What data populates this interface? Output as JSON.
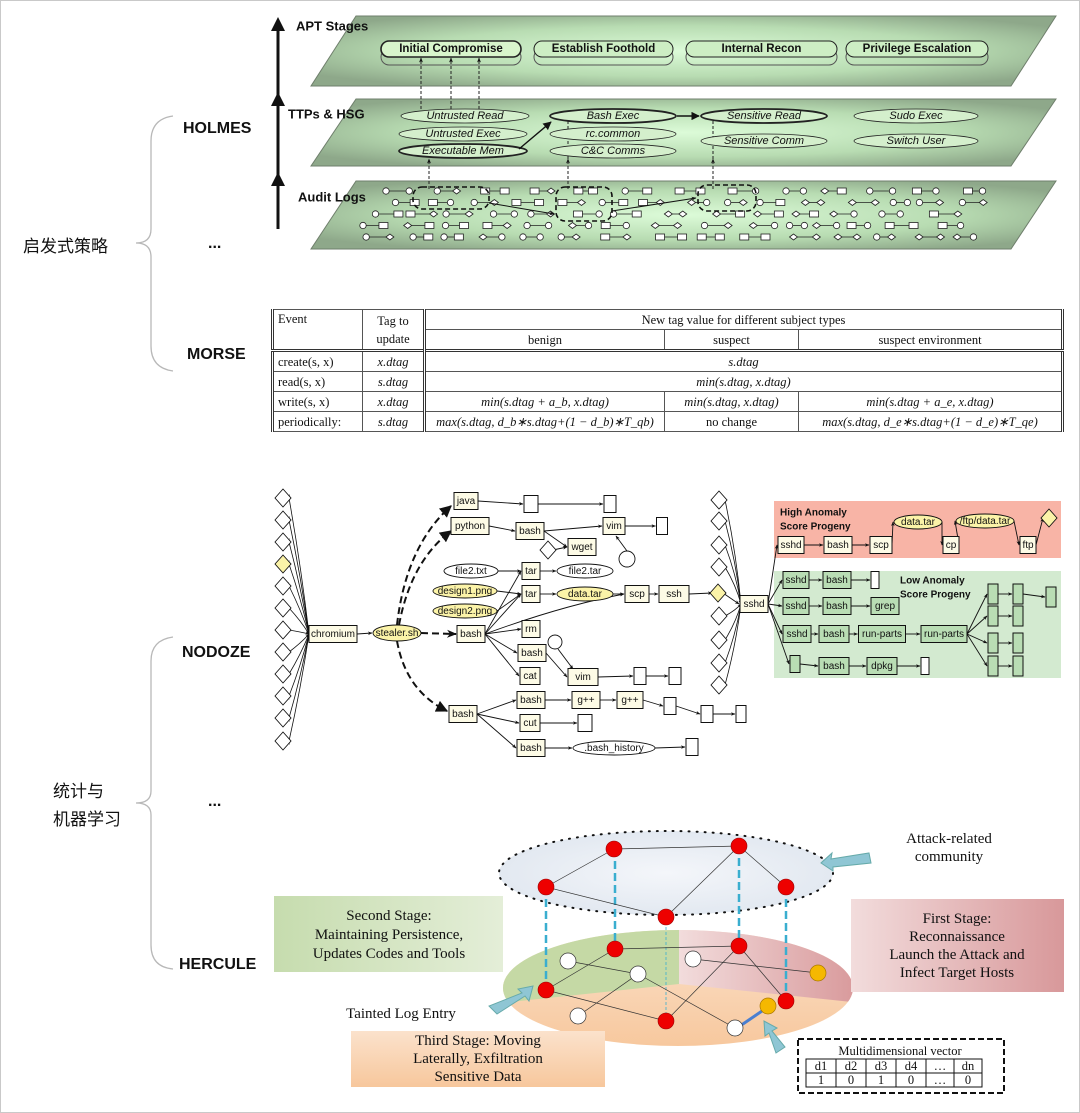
{
  "left": {
    "heuristic": "启发式策略",
    "ml_line1": "统计与",
    "ml_line2": "机器学习",
    "methods": [
      "HOLMES",
      "...",
      "MORSE",
      "NODOZE",
      "...",
      "HERCULE"
    ]
  },
  "holmes": {
    "layers": [
      "APT Stages",
      "TTPs & HSG",
      "Audit Logs"
    ],
    "stages": [
      "Initial Compromise",
      "Establish Foothold",
      "Internal Recon",
      "Privilege Escalation"
    ],
    "ttps": [
      "Untrusted Read",
      "Untrusted Exec",
      "Executable Mem",
      "Bash Exec",
      "rc.common",
      "C&C Comms",
      "Sensitive Read",
      "Sensitive Comm",
      "Sudo Exec",
      "Switch User"
    ],
    "colors": {
      "plane": "#a8c8a0",
      "plane_glow": "#d8f8d0"
    }
  },
  "morse": {
    "headers": {
      "event": "Event",
      "tag_line1": "Tag to",
      "tag_line2": "update",
      "group": "New tag value for different subject types",
      "benign": "benign",
      "suspect": "suspect",
      "env": "suspect environment"
    },
    "rows": [
      {
        "event": "create(s, x)",
        "tag": "x.dtag",
        "all": "s.dtag"
      },
      {
        "event": "read(s, x)",
        "tag": "s.dtag",
        "all": "min(s.dtag, x.dtag)"
      },
      {
        "event": "write(s, x)",
        "tag": "x.dtag",
        "benign": "min(s.dtag + a_b, x.dtag)",
        "suspect": "min(s.dtag, x.dtag)",
        "env": "min(s.dtag + a_e, x.dtag)"
      },
      {
        "event": "periodically:",
        "tag": "s.dtag",
        "benign": "max(s.dtag,  d_b∗s.dtag+(1 − d_b)∗T_qb)",
        "suspect": "no change",
        "env": "max(s.dtag,  d_e∗s.dtag+(1 − d_e)∗T_qe)"
      }
    ]
  },
  "nodoze": {
    "labels": {
      "chromium": "chromium",
      "stealer": "stealer.sh",
      "bash1": "bash",
      "java": "java",
      "python": "python",
      "bash2": "bash",
      "vim1": "vim",
      "wget": "wget",
      "file2txt": "file2.txt",
      "tar1": "tar",
      "file2tar": "file2.tar",
      "design1": "design1.png",
      "tar2": "tar",
      "datatar": "data.tar",
      "design2": "design2.png",
      "scp": "scp",
      "ssh": "ssh",
      "sshd": "sshd",
      "rm": "rm",
      "bash3": "bash",
      "cat": "cat",
      "vim2": "vim",
      "bash4": "bash",
      "bash5": "bash",
      "gpp1": "g++",
      "gpp2": "g++",
      "cut": "cut",
      "bash6": "bash",
      "bh": ".bash_history"
    },
    "high": {
      "title1": "High Anomaly",
      "title2": "Score Progeny",
      "labels": {
        "hsshd": "sshd",
        "hbash": "bash",
        "hscp": "scp",
        "hdata": "data.tar",
        "hcp": "cp",
        "hftpfile": "/ftp/data.tar",
        "hftp": "ftp"
      }
    },
    "low": {
      "title1": "Low  Anomaly",
      "title2": "Score Progeny",
      "labels": {
        "l1s": "sshd",
        "l1b": "bash",
        "l2s": "sshd",
        "l2b": "bash",
        "grep": "grep",
        "l3s": "sshd",
        "l3b": "bash",
        "rp1": "run-parts",
        "rp2": "run-parts",
        "l4b": "bash",
        "dpkg": "dpkg"
      }
    },
    "colors": {
      "high_bg": "#f8b4a6",
      "low_bg": "#d3ead0",
      "highlight": "#fbf3a8",
      "node": "#fdfbe6"
    }
  },
  "hercule": {
    "community_line1": "Attack-related",
    "community_line2": "community",
    "second_stage": [
      "Second Stage:",
      "Maintaining Persistence,",
      "Updates Codes and Tools"
    ],
    "first_stage": [
      "First Stage:",
      "Reconnaissance",
      "Launch the Attack and",
      "Infect Target Hosts"
    ],
    "third_stage": [
      "Third Stage: Moving",
      "Laterally, Exfiltration",
      "Sensitive Data"
    ],
    "tainted": "Tainted Log Entry",
    "vector_title": "Multidimensional vector",
    "vector_dims": [
      "d1",
      "d2",
      "d3",
      "d4",
      "…",
      "dn"
    ],
    "vector_vals": [
      "1",
      "0",
      "1",
      "0",
      "…",
      "0"
    ],
    "colors": {
      "attack_node": "#ee0000",
      "normal_node": "#ffffff",
      "tainted_node": "#f5b800",
      "link": "#3aaecf",
      "arrow": "#8fc6d4"
    }
  }
}
